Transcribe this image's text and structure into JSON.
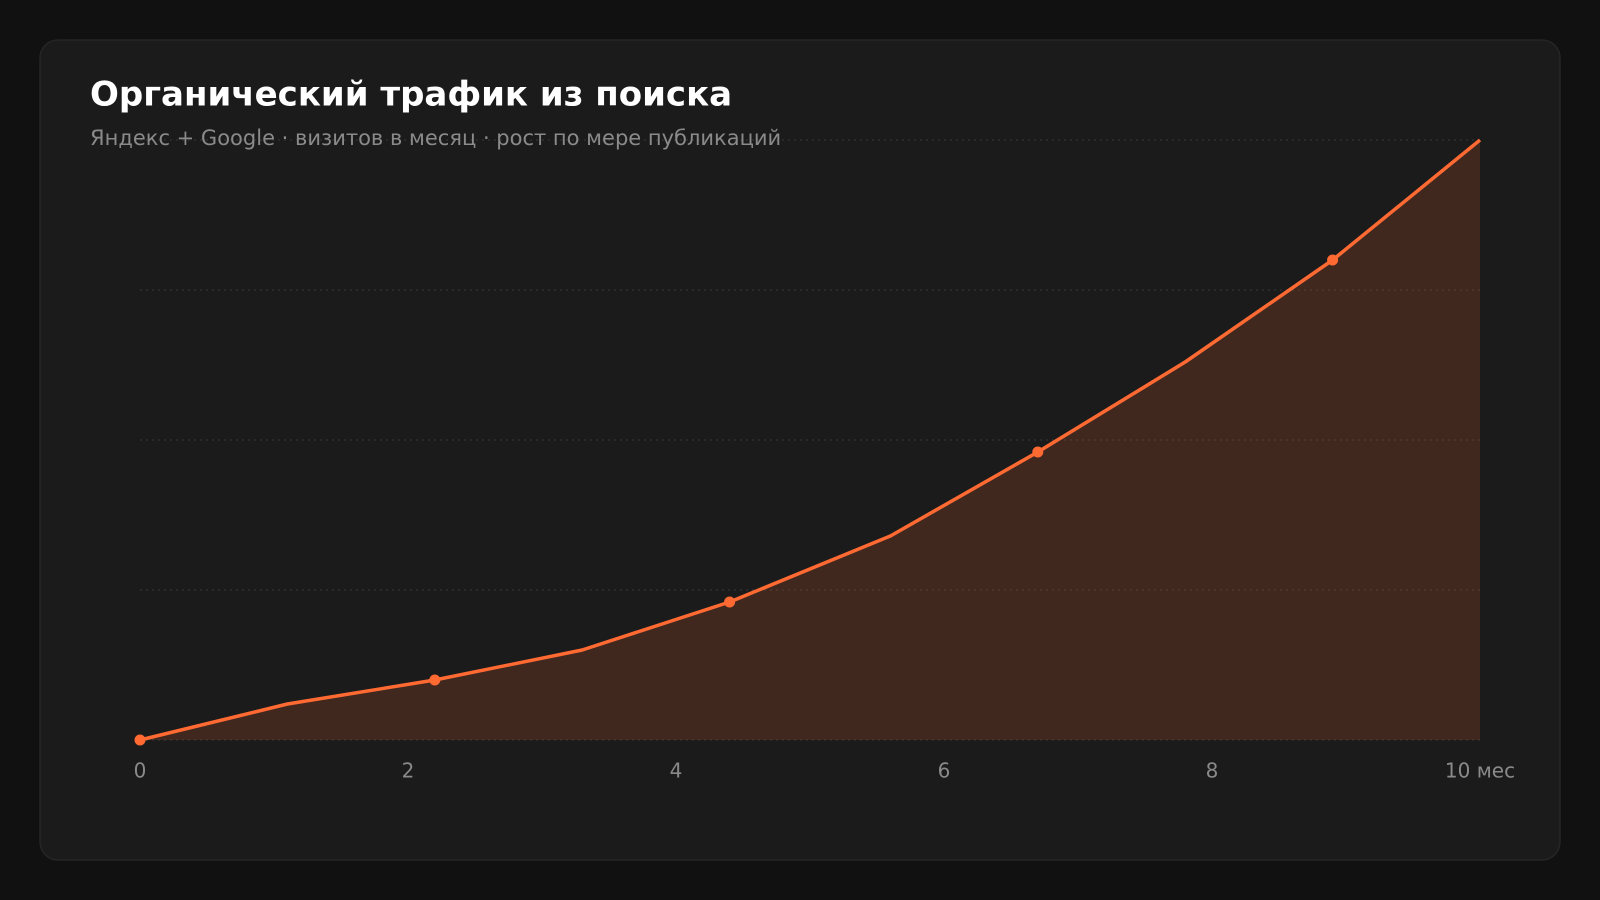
{
  "chart_data": {
    "type": "area",
    "title": "Органический трафик из поиска",
    "subtitle": "Яндекс + Google · визитов в месяц · рост по мере публикаций",
    "x": [
      0,
      1.1,
      2.2,
      3.3,
      4.4,
      5.6,
      6.7,
      7.8,
      8.9,
      10
    ],
    "values": [
      0,
      6,
      10,
      15,
      23,
      34,
      48,
      63,
      80,
      100
    ],
    "color": "#ff6a33",
    "marker_every": 2,
    "xlim": [
      0,
      10
    ],
    "xticks": [
      0,
      2,
      4,
      6,
      8,
      {
        "value": 10,
        "label": "10 мес"
      }
    ],
    "ylim": [
      0,
      100
    ],
    "yticks": [
      0,
      25,
      50,
      75,
      100
    ],
    "grid": true
  }
}
